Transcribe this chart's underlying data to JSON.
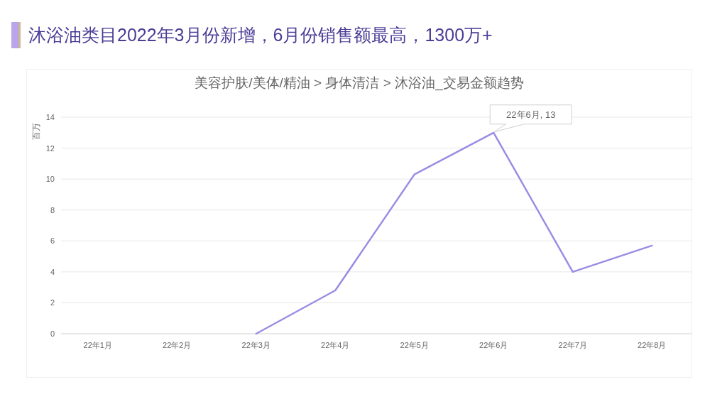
{
  "chart_data": {
    "type": "line",
    "title": "沐浴油类目2022年3月份新增，6月份销售额最高，1300万+",
    "subtitle": "美容护肤/美体/精油 > 身体清洁 > 沐浴油_交易金额趋势",
    "ylabel": "百万",
    "categories": [
      "22年1月",
      "22年2月",
      "22年3月",
      "22年4月",
      "22年5月",
      "22年6月",
      "22年7月",
      "22年8月"
    ],
    "series": [
      {
        "color": "#9c8ce3",
        "values": [
          null,
          null,
          0,
          2.8,
          10.3,
          13,
          4.0,
          5.7
        ]
      }
    ],
    "ylim": [
      0,
      14
    ],
    "yticks": [
      0,
      2,
      4,
      6,
      8,
      10,
      12,
      14
    ],
    "grid": "y",
    "marker": "none",
    "line_style": "solid",
    "annotations": [
      {
        "text": "22年6月, 13",
        "x": "22年6月",
        "y": 13
      }
    ]
  }
}
